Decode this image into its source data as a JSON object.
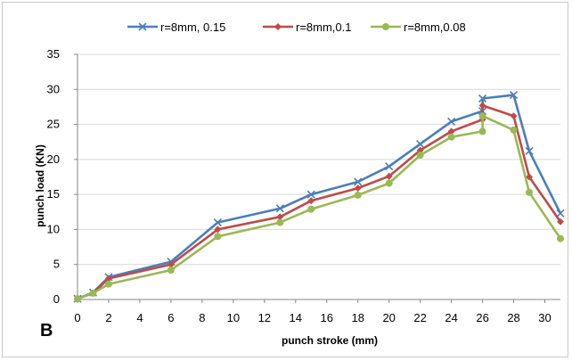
{
  "panel_label": "B",
  "chart_data": {
    "type": "line",
    "xlabel": "punch stroke (mm)",
    "ylabel": "punch load (KN)",
    "xlim": [
      0,
      31
    ],
    "ylim": [
      0,
      35
    ],
    "xticks": [
      0,
      2,
      4,
      6,
      8,
      10,
      12,
      14,
      16,
      18,
      20,
      22,
      24,
      26,
      28,
      30
    ],
    "yticks": [
      0,
      5,
      10,
      15,
      20,
      25,
      30,
      35
    ],
    "grid": "horizontal",
    "legend_position": "top",
    "series": [
      {
        "name": "r=8mm, 0.15",
        "color": "#4a7ebb",
        "marker": "x",
        "x": [
          0,
          1,
          2,
          6,
          9,
          13,
          15,
          18,
          20,
          22,
          24,
          26,
          26,
          28,
          29,
          31
        ],
        "y": [
          0.1,
          1.0,
          3.2,
          5.4,
          11.0,
          13.0,
          15.0,
          16.8,
          19.0,
          22.2,
          25.4,
          26.9,
          28.7,
          29.2,
          21.2,
          12.3
        ]
      },
      {
        "name": "r=8mm,0.1",
        "color": "#be4b48",
        "marker": "diamond",
        "x": [
          0,
          1,
          2,
          6,
          9,
          13,
          15,
          18,
          20,
          22,
          24,
          26,
          26,
          28,
          29,
          31
        ],
        "y": [
          0.1,
          0.9,
          3.0,
          5.0,
          10.0,
          11.8,
          14.1,
          15.9,
          17.6,
          21.3,
          24.0,
          25.7,
          27.7,
          26.2,
          17.5,
          11.1
        ]
      },
      {
        "name": "r=8mm,0.08",
        "color": "#98b954",
        "marker": "circle",
        "x": [
          0,
          1,
          2,
          6,
          9,
          13,
          15,
          18,
          20,
          22,
          24,
          26,
          26,
          28,
          29,
          31
        ],
        "y": [
          0.1,
          0.9,
          2.2,
          4.2,
          9.0,
          11.0,
          12.9,
          14.9,
          16.6,
          20.6,
          23.2,
          24.0,
          26.2,
          24.2,
          15.3,
          8.7
        ]
      }
    ]
  }
}
